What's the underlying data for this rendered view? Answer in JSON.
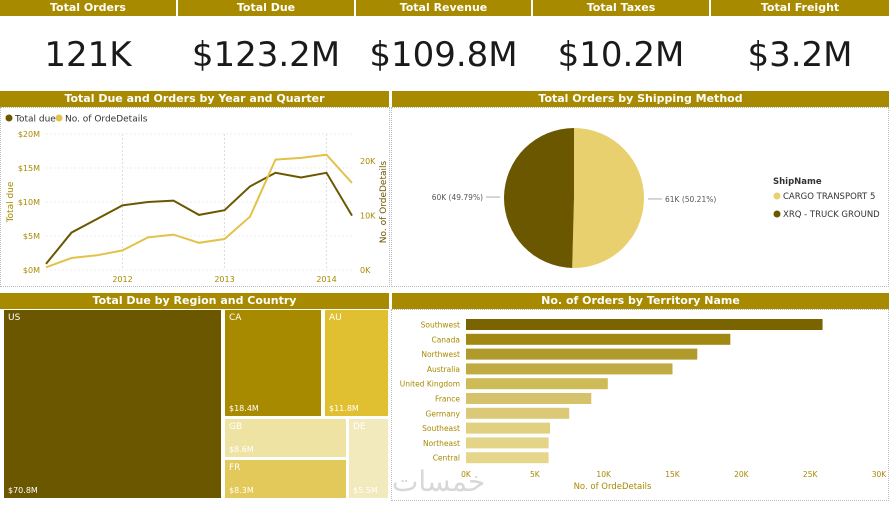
{
  "kpis": [
    {
      "label": "Total Orders",
      "value": "121K"
    },
    {
      "label": "Total Due",
      "value": "$123.2M"
    },
    {
      "label": "Total Revenue",
      "value": "$109.8M"
    },
    {
      "label": "Total Taxes",
      "value": "$10.2M"
    },
    {
      "label": "Total Freight",
      "value": "$3.2M"
    }
  ],
  "line_section": {
    "title": "Total Due and Orders by Year and Quarter",
    "legend": [
      "Total due",
      "No. of OrdeDetails"
    ]
  },
  "pie_section": {
    "title": "Total Orders by Shipping Method",
    "legend_title": "ShipName"
  },
  "treemap_section": {
    "title": "Total Due by Region and Country"
  },
  "bar_section": {
    "title": "No. of Orders by Territory Name"
  },
  "watermark": "خمسات",
  "colors": {
    "dark": "#6b5700",
    "gold": "#e3c24a",
    "header": "#a88a00"
  },
  "chart_data": [
    {
      "type": "line",
      "title": "Total Due and Orders by Year and Quarter",
      "xlabel": "",
      "ylabel": "Total due",
      "y2label": "No. of OrdeDetails",
      "x": [
        2011.5,
        2011.75,
        2012.0,
        2012.25,
        2012.5,
        2012.75,
        2013.0,
        2013.25,
        2013.5,
        2013.75,
        2014.0,
        2014.25
      ],
      "xticks": [
        "2012",
        "2013",
        "2014"
      ],
      "xtick_values": [
        2012,
        2013,
        2014
      ],
      "ylim": [
        0,
        20
      ],
      "yticks": [
        "$0M",
        "$5M",
        "$10M",
        "$15M",
        "$20M"
      ],
      "y2lim": [
        0,
        25000
      ],
      "y2ticks": [
        "0K",
        "10K",
        "20K"
      ],
      "y2tick_values": [
        0,
        10000,
        20000
      ],
      "series": [
        {
          "name": "Total due",
          "axis": "left",
          "values": [
            0.9,
            5.5,
            7.5,
            9.5,
            10.0,
            10.2,
            8.1,
            8.8,
            12.3,
            14.3,
            13.6,
            14.3,
            8.0
          ],
          "x": [
            2011.25,
            2011.5,
            2011.75,
            2012.0,
            2012.25,
            2012.5,
            2012.75,
            2013.0,
            2013.25,
            2013.5,
            2013.75,
            2014.0,
            2014.25
          ]
        },
        {
          "name": "No. of OrdeDetails",
          "axis": "right",
          "values": [
            500,
            2200,
            2700,
            3600,
            6000,
            6500,
            5000,
            5700,
            9800,
            20300,
            20600,
            21200,
            16000
          ],
          "x": [
            2011.25,
            2011.5,
            2011.75,
            2012.0,
            2012.25,
            2012.5,
            2012.75,
            2013.0,
            2013.25,
            2013.5,
            2013.75,
            2014.0,
            2014.25
          ]
        }
      ]
    },
    {
      "type": "pie",
      "title": "Total Orders by Shipping Method",
      "slices": [
        {
          "name": "CARGO TRANSPORT 5",
          "value": 61000,
          "label": "61K (50.21%)",
          "color": "#e8d06e"
        },
        {
          "name": "XRQ - TRUCK GROUND",
          "value": 60000,
          "label": "60K (49.79%)",
          "color": "#6b5700"
        }
      ]
    },
    {
      "type": "treemap",
      "title": "Total Due by Region and Country",
      "items": [
        {
          "name": "US",
          "label": "$70.8M",
          "value": 70.8,
          "color": "#6b5700"
        },
        {
          "name": "CA",
          "label": "$18.4M",
          "value": 18.4,
          "color": "#a88a00"
        },
        {
          "name": "AU",
          "label": "$11.8M",
          "value": 11.8,
          "color": "#e0c030"
        },
        {
          "name": "GB",
          "label": "$8.6M",
          "value": 8.6,
          "color": "#efe3a4"
        },
        {
          "name": "DE",
          "label": "$5.5M",
          "value": 5.5,
          "color": "#f2e9bd"
        },
        {
          "name": "FR",
          "label": "$8.3M",
          "value": 8.3,
          "color": "#e3c95a"
        }
      ]
    },
    {
      "type": "bar",
      "orientation": "horizontal",
      "title": "No. of Orders by Territory Name",
      "xlabel": "No. of OrdeDetails",
      "categories": [
        "Southwest",
        "Canada",
        "Northwest",
        "Australia",
        "United Kingdom",
        "France",
        "Germany",
        "Southeast",
        "Northeast",
        "Central"
      ],
      "values": [
        25900,
        19200,
        16800,
        15000,
        10300,
        9100,
        7500,
        6100,
        6000,
        6000
      ],
      "xlim": [
        0,
        30000
      ],
      "xticks": [
        "0K",
        "5K",
        "10K",
        "15K",
        "20K",
        "25K",
        "30K"
      ],
      "colors": [
        "#7a6400",
        "#a08812",
        "#b09a2c",
        "#c0aa42",
        "#cfba58",
        "#d6c26a",
        "#dcc978",
        "#e0d080",
        "#e3d488",
        "#e5d68c"
      ]
    }
  ]
}
